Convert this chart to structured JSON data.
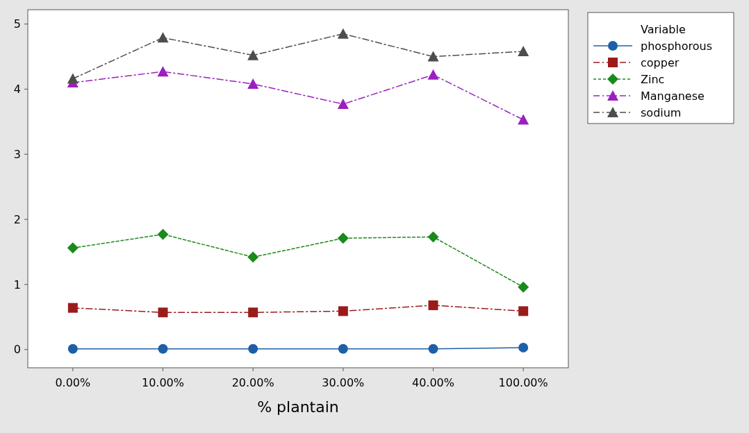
{
  "chart_data": {
    "type": "line",
    "xlabel": "% plantain",
    "legend_title": "Variable",
    "categories": [
      "0.00%",
      "10.00%",
      "20.00%",
      "30.00%",
      "40.00%",
      "100.00%"
    ],
    "series": [
      {
        "name": "phosphorous",
        "color": "#1f5fa8",
        "marker": "circle",
        "line_style": "solid",
        "values": [
          0.01,
          0.01,
          0.01,
          0.01,
          0.01,
          0.03
        ]
      },
      {
        "name": "copper",
        "color": "#9b1b1b",
        "marker": "square",
        "line_style": "dashed",
        "values": [
          0.64,
          0.57,
          0.57,
          0.59,
          0.68,
          0.59
        ]
      },
      {
        "name": "Zinc",
        "color": "#1a8a1a",
        "marker": "diamond",
        "line_style": "dotted",
        "values": [
          1.56,
          1.77,
          1.42,
          1.71,
          1.73,
          0.96
        ]
      },
      {
        "name": "Manganese",
        "color": "#9b1fc0",
        "marker": "triangle",
        "line_style": "dashed",
        "values": [
          4.1,
          4.27,
          4.08,
          3.77,
          4.22,
          3.53
        ]
      },
      {
        "name": "sodium",
        "color": "#4d4d4d",
        "marker": "triangle",
        "line_style": "dashed",
        "values": [
          4.16,
          4.79,
          4.52,
          4.85,
          4.5,
          4.58
        ]
      }
    ],
    "ylim": [
      -0.28,
      5.22
    ],
    "yticks": [
      0,
      1,
      2,
      3,
      4,
      5
    ],
    "legend": "top right",
    "grid": false
  }
}
